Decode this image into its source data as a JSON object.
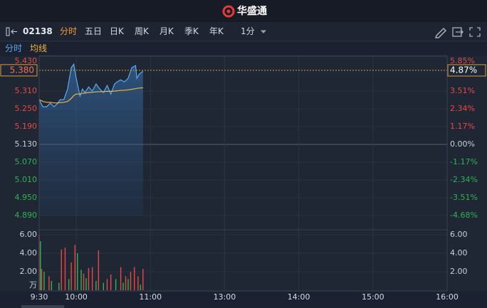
{
  "header": {
    "logo_text": "华盛通"
  },
  "toolbar": {
    "code": "02138",
    "tabs": [
      "分时",
      "五日",
      "日K",
      "周K",
      "月K",
      "季K",
      "年K"
    ],
    "interval": "1分"
  },
  "chart_data": [
    {
      "type": "line",
      "x": [
        0,
        3,
        6,
        9,
        12,
        15,
        17,
        20,
        23,
        26,
        28,
        30,
        33,
        35,
        37,
        40,
        43,
        46,
        49,
        52,
        55,
        58,
        61,
        63,
        66,
        69,
        72,
        75,
        78,
        79,
        81,
        84
      ],
      "series": [
        {
          "name": "分时",
          "color": "#5aa9f0",
          "values": [
            5.281,
            5.257,
            5.257,
            5.269,
            5.257,
            5.269,
            5.281,
            5.281,
            5.317,
            5.389,
            5.401,
            5.353,
            5.293,
            5.317,
            5.305,
            5.324,
            5.31,
            5.334,
            5.317,
            5.305,
            5.329,
            5.3,
            5.334,
            5.341,
            5.348,
            5.341,
            5.353,
            5.389,
            5.396,
            5.353,
            5.367,
            5.377
          ]
        },
        {
          "name": "均线",
          "color": "#f0b43c",
          "values": [
            5.281,
            5.275,
            5.272,
            5.272,
            5.27,
            5.27,
            5.271,
            5.272,
            5.275,
            5.285,
            5.295,
            5.3,
            5.3,
            5.302,
            5.303,
            5.305,
            5.306,
            5.307,
            5.308,
            5.308,
            5.309,
            5.309,
            5.31,
            5.311,
            5.312,
            5.313,
            5.314,
            5.316,
            5.318,
            5.319,
            5.32,
            5.321
          ]
        }
      ],
      "ylim": [
        4.89,
        5.43
      ],
      "yticks": [
        {
          "value": 5.43,
          "label": "5.430"
        },
        {
          "value": 5.31,
          "label": "5.310"
        },
        {
          "value": 5.25,
          "label": "5.250"
        },
        {
          "value": 5.19,
          "label": "5.190"
        },
        {
          "value": 5.13,
          "label": "5.130"
        },
        {
          "value": 5.07,
          "label": "5.070"
        },
        {
          "value": 5.01,
          "label": "5.010"
        },
        {
          "value": 4.95,
          "label": "4.950"
        },
        {
          "value": 4.89,
          "label": "4.890"
        }
      ],
      "y2lim": [
        -4.68,
        5.85
      ],
      "y2ticks": [
        {
          "value": 5.85,
          "label": "5.85%"
        },
        {
          "value": 3.51,
          "label": "3.51%"
        },
        {
          "value": 2.34,
          "label": "2.34%"
        },
        {
          "value": 1.17,
          "label": "1.17%"
        },
        {
          "value": 0,
          "label": "0.00%"
        },
        {
          "value": -1.17,
          "label": "-1.17%"
        },
        {
          "value": -2.34,
          "label": "-2.34%"
        },
        {
          "value": -3.51,
          "label": "-3.51%"
        },
        {
          "value": -4.68,
          "label": "-4.68%"
        }
      ],
      "last_price": {
        "value": 5.38,
        "label": "5.380"
      },
      "last_change": {
        "value": 4.87,
        "label": "4.87%"
      },
      "grid": true
    },
    {
      "type": "bar",
      "series": [
        {
          "color": "#e8483f",
          "x": [
            0,
            2,
            8,
            18,
            21,
            26,
            29,
            36,
            40,
            43,
            48,
            55,
            58,
            66,
            70,
            74,
            77,
            80,
            84
          ],
          "values": [
            6.0,
            2.3,
            1.5,
            4.4,
            4.6,
            3.0,
            4.9,
            1.8,
            2.4,
            2.5,
            4.3,
            1.2,
            1.7,
            2.5,
            1.5,
            2.0,
            2.5,
            1.5,
            2.3
          ]
        },
        {
          "color": "#2fb350",
          "x": [
            1,
            4,
            10,
            16,
            24,
            31,
            34,
            38,
            46,
            52,
            62,
            68,
            72,
            82
          ],
          "values": [
            5.3,
            2.0,
            1.0,
            0.8,
            1.2,
            4.0,
            2.2,
            1.3,
            1.0,
            0.8,
            1.2,
            0.8,
            1.2,
            0.6
          ]
        }
      ],
      "ylim": [
        0,
        6
      ],
      "yticks": [
        {
          "value": 6,
          "label": "6.00"
        },
        {
          "value": 4,
          "label": "4.00"
        },
        {
          "value": 2,
          "label": "2.00"
        }
      ],
      "y_unit": "万",
      "xlim": [
        0,
        330
      ],
      "xticks": [
        {
          "value": 0,
          "label": "9:30"
        },
        {
          "value": 30,
          "label": "10:00"
        },
        {
          "value": 90,
          "label": "11:00"
        },
        {
          "value": 150,
          "label": "13:00"
        },
        {
          "value": 210,
          "label": "14:00"
        },
        {
          "value": 270,
          "label": "15:00"
        },
        {
          "value": 330,
          "label": "16:00"
        }
      ],
      "grid": true
    }
  ]
}
